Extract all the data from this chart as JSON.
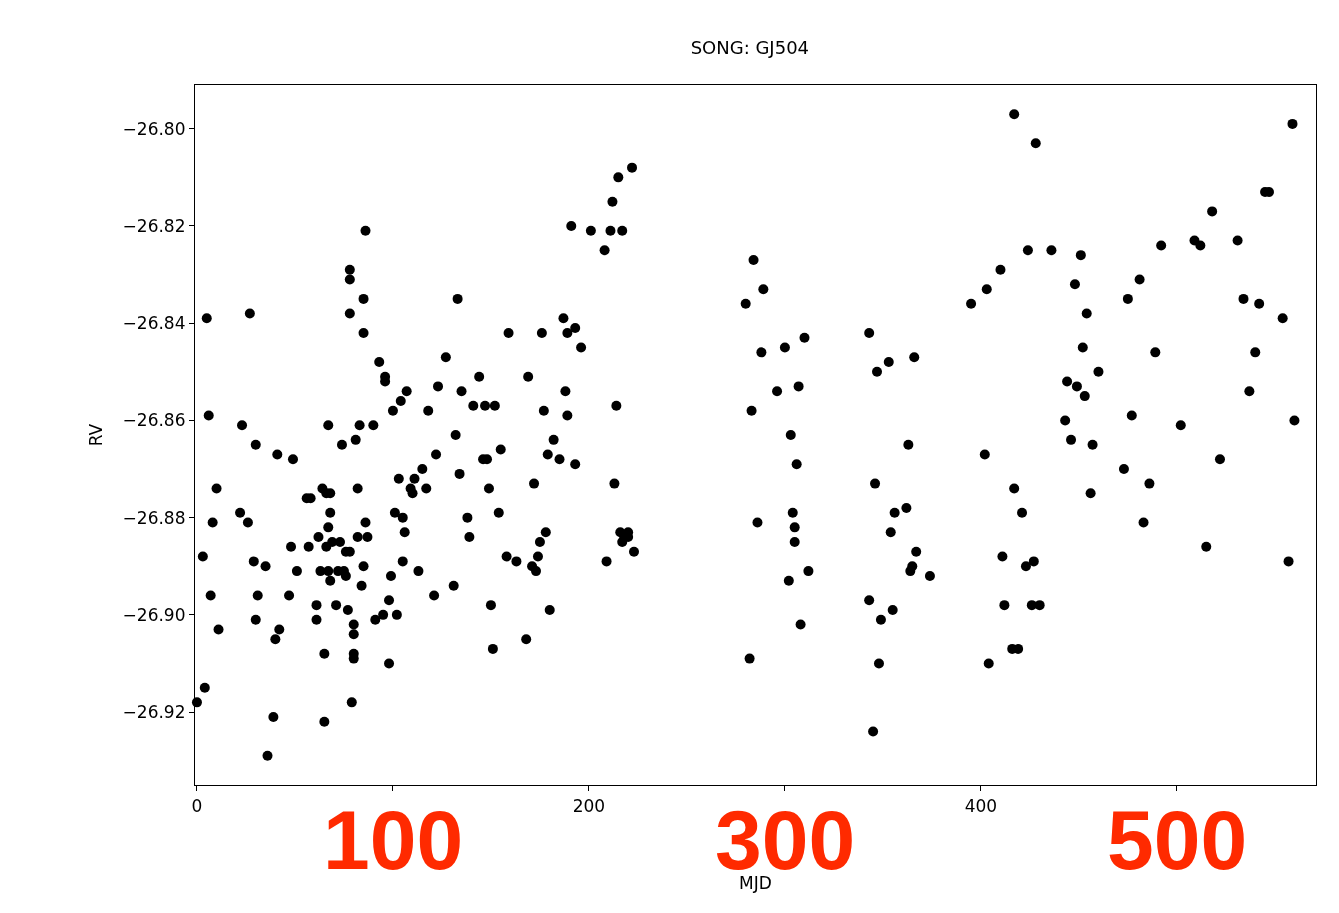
{
  "chart_data": {
    "type": "scatter",
    "title": "SONG: GJ504",
    "xlabel": "MJD",
    "ylabel": "RV",
    "color": "#000000",
    "marker": "circle",
    "xlim": [
      -1,
      571
    ],
    "ylim": [
      -26.935,
      -26.791
    ],
    "xticks": [
      0,
      {
        "value": 100,
        "label": null
      },
      200,
      {
        "value": 300,
        "label": null
      },
      400,
      {
        "value": 500,
        "label": null
      }
    ],
    "annotations": [
      "100",
      "300",
      "500"
    ],
    "yticks": [
      {
        "value": -26.92,
        "label": "−26.92"
      },
      {
        "value": -26.9,
        "label": "−26.90"
      },
      {
        "value": -26.88,
        "label": "−26.88"
      },
      {
        "value": -26.86,
        "label": "−26.86"
      },
      {
        "value": -26.84,
        "label": "−26.84"
      },
      {
        "value": -26.82,
        "label": "−26.82"
      },
      {
        "value": -26.8,
        "label": "−26.80"
      }
    ],
    "x": [
      0,
      3,
      4,
      5,
      6,
      7,
      8,
      10,
      11,
      23,
      22,
      26,
      27,
      29,
      30,
      30,
      31,
      35,
      36,
      39,
      40,
      41,
      42,
      47,
      48,
      49,
      51,
      56,
      57,
      58,
      61,
      61,
      62,
      63,
      64,
      65,
      65,
      66,
      66,
      67,
      67,
      67,
      68,
      68,
      68,
      69,
      71,
      72,
      73,
      74,
      75,
      76,
      76,
      77,
      78,
      78,
      78,
      78,
      79,
      80,
      80,
      80,
      80,
      81,
      82,
      82,
      83,
      84,
      85,
      86,
      85,
      86,
      87,
      85,
      90,
      91,
      93,
      95,
      96,
      96,
      98,
      98,
      99,
      100,
      101,
      102,
      103,
      104,
      105,
      105,
      106,
      107,
      109,
      110,
      111,
      113,
      115,
      117,
      118,
      121,
      122,
      123,
      127,
      131,
      132,
      133,
      134,
      135,
      138,
      139,
      141,
      144,
      146,
      147,
      148,
      149,
      150,
      151,
      152,
      154,
      155,
      158,
      159,
      163,
      168,
      169,
      171,
      172,
      173,
      174,
      175,
      176,
      177,
      178,
      180,
      179,
      182,
      185,
      187,
      188,
      189,
      189,
      191,
      193,
      193,
      196,
      201,
      208,
      209,
      211,
      212,
      213,
      214,
      215,
      216,
      217,
      217,
      218,
      220,
      220,
      222,
      223,
      280,
      282,
      283,
      284,
      286,
      288,
      289,
      296,
      300,
      302,
      303,
      304,
      305,
      305,
      306,
      307,
      308,
      310,
      312,
      343,
      343,
      345,
      346,
      347,
      348,
      349,
      353,
      354,
      355,
      356,
      362,
      363,
      364,
      365,
      366,
      367,
      374,
      395,
      402,
      403,
      404,
      410,
      411,
      412,
      417,
      416,
      417,
      419,
      421,
      423,
      424,
      426,
      427,
      428,
      430,
      436,
      443,
      444,
      446,
      448,
      449,
      451,
      452,
      453,
      454,
      456,
      457,
      460,
      473,
      475,
      477,
      481,
      483,
      486,
      489,
      492,
      502,
      509,
      512,
      515,
      518,
      522,
      531,
      534,
      537,
      540,
      542,
      545,
      547,
      554,
      557,
      559,
      560
    ],
    "values": [
      -26.918,
      -26.888,
      -26.915,
      -26.839,
      -26.859,
      -26.896,
      -26.881,
      -26.874,
      -26.903,
      -26.861,
      -26.879,
      -26.881,
      -26.838,
      -26.889,
      -26.901,
      -26.865,
      -26.896,
      -26.89,
      -26.929,
      -26.921,
      -26.905,
      -26.867,
      -26.903,
      -26.896,
      -26.886,
      -26.868,
      -26.891,
      -26.876,
      -26.886,
      -26.876,
      -26.898,
      -26.901,
      -26.884,
      -26.891,
      -26.874,
      -26.922,
      -26.908,
      -26.875,
      -26.886,
      -26.891,
      -26.882,
      -26.861,
      -26.893,
      -26.875,
      -26.879,
      -26.885,
      -26.898,
      -26.891,
      -26.885,
      -26.865,
      -26.891,
      -26.887,
      -26.892,
      -26.899,
      -26.887,
      -26.829,
      -26.831,
      -26.838,
      -26.918,
      -26.908,
      -26.909,
      -26.904,
      -26.902,
      -26.864,
      -26.874,
      -26.884,
      -26.861,
      -26.894,
      -26.835,
      -26.821,
      -26.842,
      -26.881,
      -26.884,
      -26.89,
      -26.861,
      -26.901,
      -26.848,
      -26.9,
      -26.851,
      -26.852,
      -26.897,
      -26.91,
      -26.892,
      -26.858,
      -26.879,
      -26.9,
      -26.872,
      -26.856,
      -26.88,
      -26.889,
      -26.883,
      -26.854,
      -26.874,
      -26.875,
      -26.872,
      -26.891,
      -26.87,
      -26.874,
      -26.858,
      -26.896,
      -26.867,
      -26.853,
      -26.847,
      -26.894,
      -26.863,
      -26.835,
      -26.871,
      -26.854,
      -26.88,
      -26.884,
      -26.857,
      -26.851,
      -26.868,
      -26.857,
      -26.868,
      -26.874,
      -26.898,
      -26.907,
      -26.857,
      -26.879,
      -26.866,
      -26.888,
      -26.842,
      -26.889,
      -26.905,
      -26.851,
      -26.89,
      -26.873,
      -26.891,
      -26.888,
      -26.885,
      -26.842,
      -26.858,
      -26.883,
      -26.899,
      -26.867,
      -26.864,
      -26.868,
      -26.839,
      -26.854,
      -26.859,
      -26.842,
      -26.82,
      -26.869,
      -26.841,
      -26.845,
      -26.821,
      -26.825,
      -26.889,
      -26.821,
      -26.815,
      -26.873,
      -26.857,
      -26.81,
      -26.883,
      -26.885,
      -26.821,
      -26.884,
      -26.883,
      -26.884,
      -26.808,
      -26.887,
      -26.836,
      -26.909,
      -26.858,
      -26.827,
      -26.881,
      -26.846,
      -26.833,
      -26.854,
      -26.845,
      -26.893,
      -26.863,
      -26.879,
      -26.885,
      -26.882,
      -26.869,
      -26.853,
      -26.902,
      -26.843,
      -26.891,
      -26.842,
      -26.897,
      -26.924,
      -26.873,
      -26.85,
      -26.91,
      -26.901,
      -26.848,
      -26.883,
      -26.899,
      -26.879,
      -26.878,
      -26.865,
      -26.891,
      -26.89,
      -26.847,
      -26.887,
      -26.892,
      -26.836,
      -26.867,
      -26.833,
      -26.91,
      -26.829,
      -26.888,
      -26.898,
      -26.874,
      -26.907,
      -26.797,
      -26.907,
      -26.879,
      -26.89,
      -26.825,
      -26.898,
      -26.889,
      -26.803,
      -26.898,
      -26.825,
      -26.86,
      -26.852,
      -26.864,
      -26.832,
      -26.853,
      -26.826,
      -26.845,
      -26.855,
      -26.838,
      -26.875,
      -26.865,
      -26.85,
      -26.87,
      -26.835,
      -26.859,
      -26.831,
      -26.881,
      -26.873,
      -26.846,
      -26.824,
      -26.861,
      -26.823,
      -26.824,
      -26.886,
      -26.817,
      -26.868,
      -26.823,
      -26.835,
      -26.854,
      -26.846,
      -26.836,
      -26.813,
      -26.813,
      -26.839,
      -26.889,
      -26.799,
      -26.86
    ]
  }
}
